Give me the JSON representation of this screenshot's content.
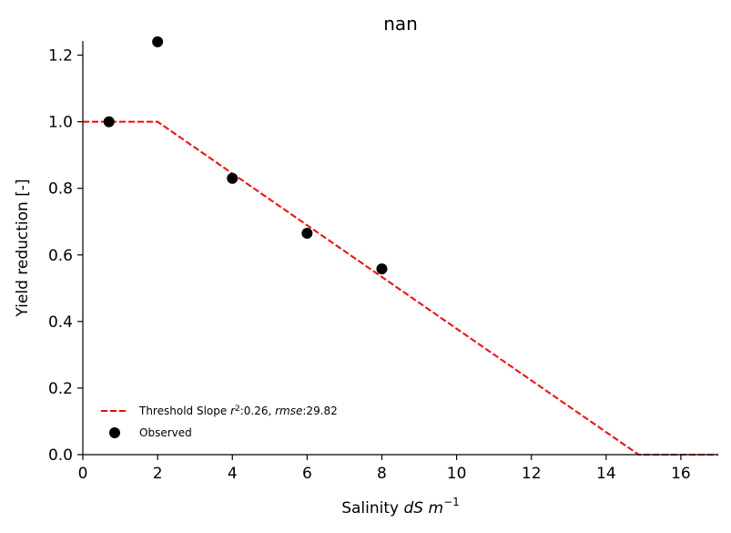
{
  "chart_data": {
    "type": "line",
    "title": "nan",
    "xlabel_prefix": "Salinity ",
    "xlabel_unit_1": "dS",
    "xlabel_unit_2": "m",
    "xlabel_unit_exp": "−1",
    "ylabel": "Yield reduction [-]",
    "xlim": [
      0,
      17
    ],
    "ylim": [
      0,
      1.3
    ],
    "xticks": [
      0,
      2,
      4,
      6,
      8,
      10,
      12,
      14,
      16
    ],
    "yticks": [
      0.0,
      0.2,
      0.4,
      0.6,
      0.8,
      1.0,
      1.2
    ],
    "ytick_labels": [
      "0.0",
      "0.2",
      "0.4",
      "0.6",
      "0.8",
      "1.0",
      "1.2"
    ],
    "series": [
      {
        "name": "Threshold Slope",
        "kind": "line",
        "style": "dashed",
        "color": "#ff0000",
        "x": [
          0,
          2,
          14.87,
          17
        ],
        "y": [
          1.0,
          1.0,
          0.0,
          0.0
        ]
      },
      {
        "name": "Observed",
        "kind": "scatter",
        "color": "#000000",
        "x": [
          0.7,
          2.0,
          4.0,
          6.0,
          8.0
        ],
        "y": [
          1.0,
          1.24,
          0.83,
          0.665,
          0.558
        ]
      }
    ],
    "legend": {
      "position": "lower-left",
      "line_label_main": "Threshold Slope ",
      "line_label_r": "r",
      "line_label_r_exp": "2",
      "line_label_r_val": ":0.26, ",
      "line_label_rmse": "rmse",
      "line_label_rmse_val": ":29.82",
      "scatter_label": "Observed"
    },
    "grid": false
  }
}
